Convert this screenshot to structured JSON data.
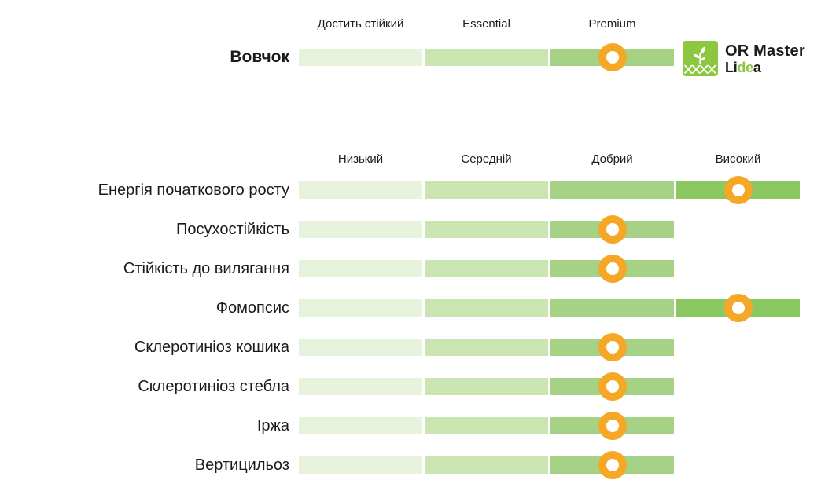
{
  "colors": {
    "background": "#FFFFFF",
    "segments": [
      "#E7F2DC",
      "#CBE5B2",
      "#A5D284",
      "#8CC862"
    ],
    "marker": "#F5A726",
    "text": "#1D1D1B",
    "logo_green": "#8DC63F"
  },
  "logo": {
    "product": "OR Master",
    "brand": "Lidea",
    "brand_parts": {
      "p1": "Li",
      "p2": "de",
      "p3": "a"
    },
    "icon": "dna-sprout-icon"
  },
  "chart_data": [
    {
      "type": "bar",
      "subtype": "rating-scale",
      "name": "broomrape-resistance",
      "title": "",
      "scale_labels": [
        "Достить стійкий",
        "Essential",
        "Premium"
      ],
      "scale_levels": 3,
      "legend_position": "top",
      "marker_style": "orange-ring",
      "rows": [
        {
          "label": "Вовчок",
          "rating": "Premium",
          "rating_index": 3
        }
      ]
    },
    {
      "type": "bar",
      "subtype": "rating-scale",
      "name": "agronomic-traits",
      "title": "",
      "scale_labels": [
        "Низький",
        "Середній",
        "Добрий",
        "Високий"
      ],
      "scale_levels": 4,
      "legend_position": "top",
      "marker_style": "orange-ring",
      "rows": [
        {
          "label": "Енергія початкового росту",
          "rating": "Високий",
          "rating_index": 4
        },
        {
          "label": "Посухостійкість",
          "rating": "Добрий",
          "rating_index": 3
        },
        {
          "label": "Стійкість до вилягання",
          "rating": "Добрий",
          "rating_index": 3
        },
        {
          "label": "Фомопсис",
          "rating": "Високий",
          "rating_index": 4
        },
        {
          "label": "Склеротиніоз кошика",
          "rating": "Добрий",
          "rating_index": 3
        },
        {
          "label": "Склеротиніоз стебла",
          "rating": "Добрий",
          "rating_index": 3
        },
        {
          "label": "Іржа",
          "rating": "Добрий",
          "rating_index": 3
        },
        {
          "label": "Вертицильоз",
          "rating": "Добрий",
          "rating_index": 3
        }
      ]
    }
  ]
}
